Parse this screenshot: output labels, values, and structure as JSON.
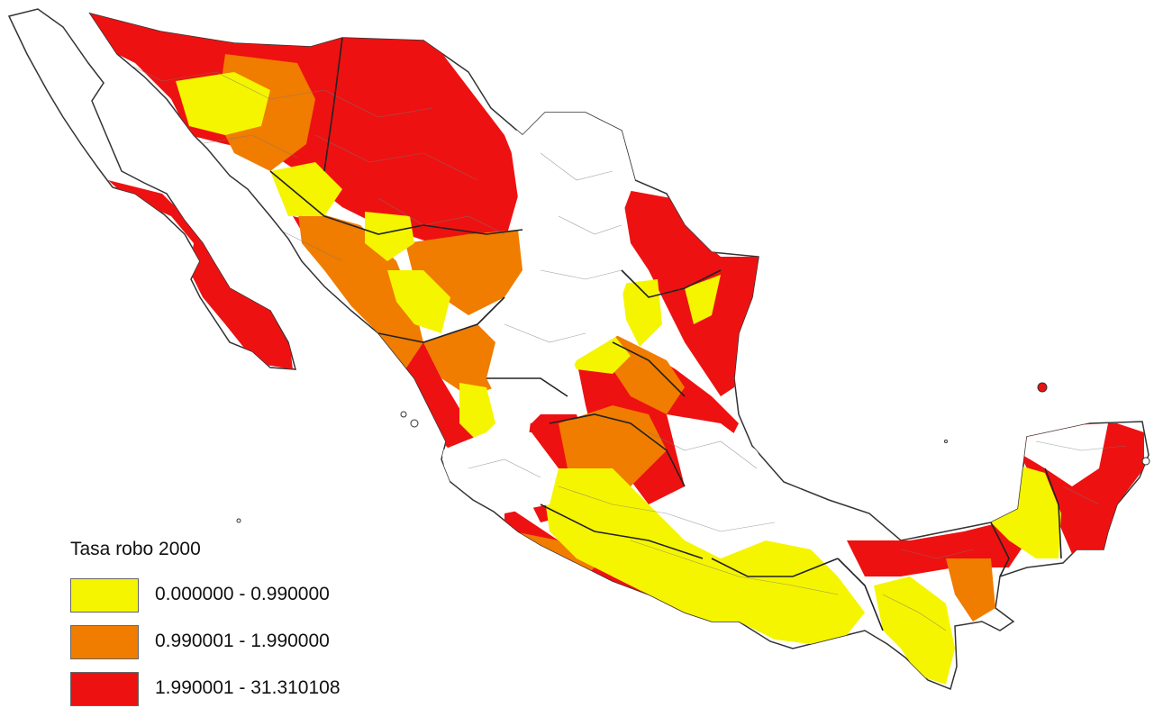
{
  "legend": {
    "title": "Tasa robo 2000",
    "classes": [
      {
        "label": "0.000000 - 0.990000",
        "color": "#f5f500",
        "color_name": "yellow"
      },
      {
        "label": "0.990001 - 1.990000",
        "color": "#f07c00",
        "color_name": "orange"
      },
      {
        "label": "1.990001 - 31.310108",
        "color": "#ee1111",
        "color_name": "red"
      }
    ]
  },
  "map": {
    "country": "México",
    "no_data_color": "#ffffff",
    "boundary_color": "#333333"
  }
}
